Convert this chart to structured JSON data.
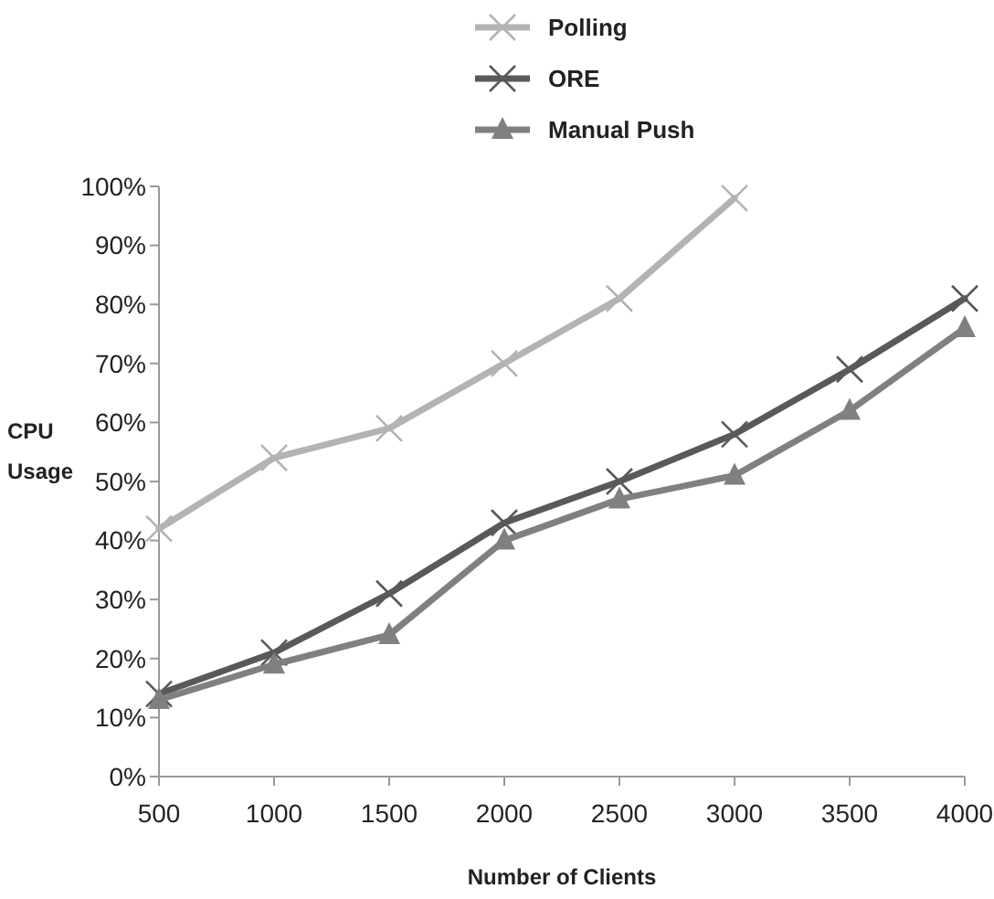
{
  "chart_data": {
    "type": "line",
    "xlabel": "Number of Clients",
    "ylabel": "CPU Usage",
    "x": [
      500,
      1000,
      1500,
      2000,
      2500,
      3000,
      3500,
      4000
    ],
    "xlim": [
      500,
      4000
    ],
    "xticks": [
      500,
      1000,
      1500,
      2000,
      2500,
      3000,
      3500,
      4000
    ],
    "ylim": [
      0,
      100
    ],
    "yticks": [
      {
        "value": 0,
        "label": "0%"
      },
      {
        "value": 10,
        "label": "10%"
      },
      {
        "value": 20,
        "label": "20%"
      },
      {
        "value": 30,
        "label": "30%"
      },
      {
        "value": 40,
        "label": "40%"
      },
      {
        "value": 50,
        "label": "50%"
      },
      {
        "value": 60,
        "label": "60%"
      },
      {
        "value": 70,
        "label": "70%"
      },
      {
        "value": 80,
        "label": "80%"
      },
      {
        "value": 90,
        "label": "90%"
      },
      {
        "value": 100,
        "label": "100%"
      }
    ],
    "grid": false,
    "legend": "top",
    "series": [
      {
        "name": "Polling",
        "color": "#b3b3b3",
        "marker": "cross",
        "values": [
          42,
          54,
          59,
          70,
          81,
          98,
          null,
          null
        ]
      },
      {
        "name": "ORE",
        "color": "#595959",
        "marker": "cross",
        "values": [
          14,
          21,
          31,
          43,
          50,
          58,
          69,
          81
        ]
      },
      {
        "name": "Manual Push",
        "color": "#808080",
        "marker": "triangle",
        "values": [
          13,
          19,
          24,
          40,
          47,
          51,
          62,
          76
        ]
      }
    ]
  }
}
